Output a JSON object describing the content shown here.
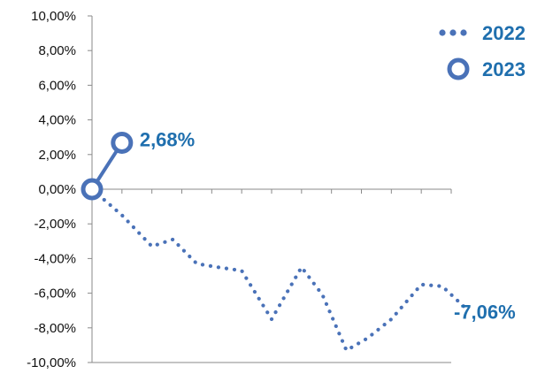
{
  "chart_data": {
    "type": "line",
    "yaxis": {
      "min": -10,
      "max": 10,
      "step": 2,
      "tick_labels": [
        "10,00%",
        "8,00%",
        "6,00%",
        "4,00%",
        "2,00%",
        "0,00%",
        "-2,00%",
        "-4,00%",
        "-6,00%",
        "-8,00%",
        "-10,00%"
      ]
    },
    "xaxis": {
      "min": 0,
      "max": 12,
      "minor_ticks": 12
    },
    "series": [
      {
        "name": "2022",
        "style": "dotted",
        "color": "#4a72b8",
        "x": [
          0,
          1,
          2,
          2.7,
          3.5,
          4.2,
          5,
          6,
          7,
          7.7,
          8.5,
          9.2,
          10,
          11,
          11.7,
          12.6
        ],
        "y": [
          0,
          -1.5,
          -3.3,
          -2.9,
          -4.3,
          -4.5,
          -4.7,
          -7.5,
          -4.5,
          -6.1,
          -9.3,
          -8.6,
          -7.5,
          -5.5,
          -5.6,
          -7.06
        ]
      },
      {
        "name": "2023",
        "style": "solid-circle",
        "color": "#4a72b8",
        "x": [
          0,
          1
        ],
        "y": [
          0,
          2.68
        ]
      }
    ],
    "annotations": [
      {
        "series": "2023",
        "text": "2,68%"
      },
      {
        "series": "2022",
        "text": "-7,06%"
      }
    ],
    "legend": {
      "position": "top-right",
      "items": [
        {
          "label": "2022",
          "marker": "dots"
        },
        {
          "label": "2023",
          "marker": "circle"
        }
      ]
    },
    "grid": false
  }
}
